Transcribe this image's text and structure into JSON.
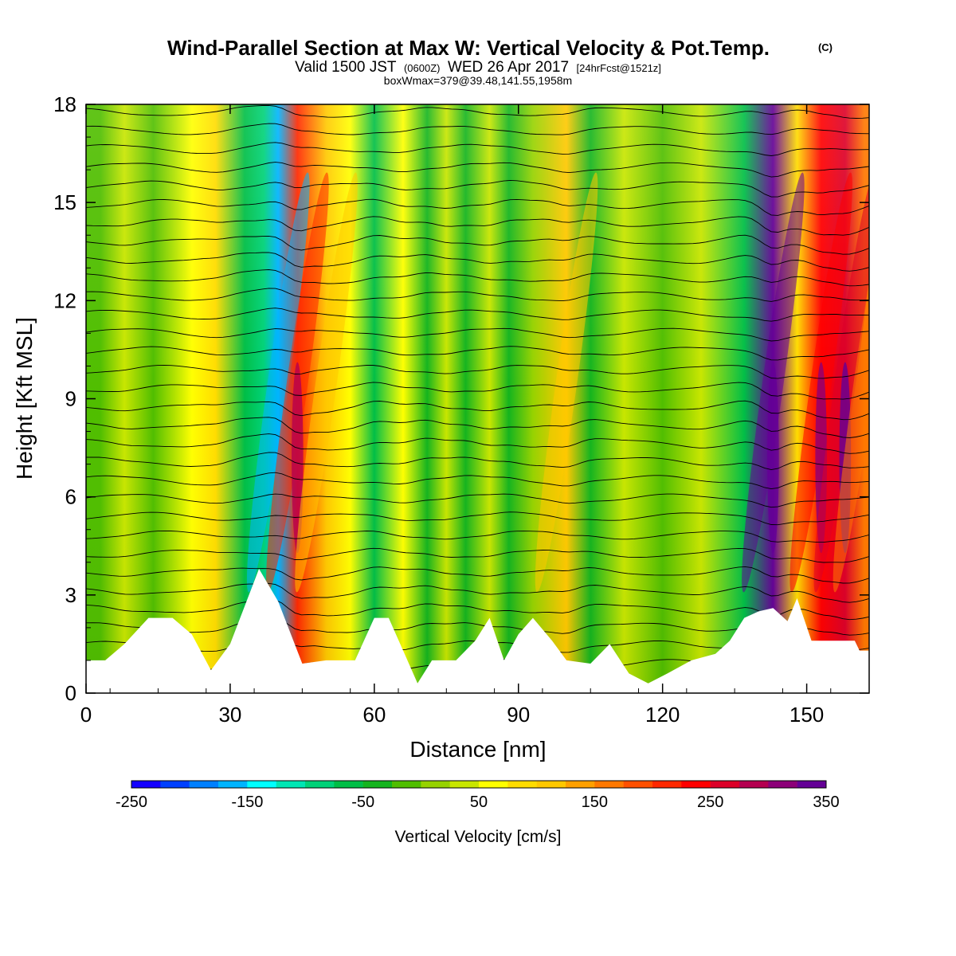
{
  "title": {
    "main": "Wind-Parallel Section at Max W: Vertical Velocity & Pot.Temp.",
    "copyright": "(C)",
    "valid_prefix": "Valid 1500 JST",
    "valid_utc": "(0600Z)",
    "valid_date": "WED 26 Apr 2017",
    "forecast": "[24hrFcst@1521z]",
    "box": "boxWmax=379@39.48,141.55,1958m"
  },
  "colorbar": {
    "title": "Vertical Velocity [cm/s]",
    "tick_labels": [
      "-250",
      "-150",
      "-50",
      "50",
      "150",
      "250",
      "350"
    ],
    "colors": [
      "#1400ff",
      "#0040ff",
      "#0080ff",
      "#00b4ff",
      "#00ffff",
      "#00e6b4",
      "#00d278",
      "#00be46",
      "#14b41e",
      "#50be00",
      "#96d200",
      "#c8e600",
      "#ffff00",
      "#ffdc00",
      "#ffc800",
      "#ffa000",
      "#ff7800",
      "#ff5000",
      "#ff2800",
      "#ff0000",
      "#dc0028",
      "#b40050",
      "#8c0078",
      "#640096"
    ]
  },
  "chart_data": {
    "type": "heatmap",
    "title": "Wind-Parallel Section at Max W: Vertical Velocity & Pot.Temp.",
    "xlabel": "Distance [nm]",
    "ylabel": "Height [Kft MSL]",
    "xlim": [
      0,
      163
    ],
    "ylim": [
      0,
      18
    ],
    "x_ticks": [
      0,
      30,
      60,
      90,
      120,
      150
    ],
    "y_ticks": [
      0,
      3,
      6,
      9,
      12,
      15,
      18
    ],
    "value_units": "cm/s",
    "value_range": [
      -250,
      350
    ],
    "max_w": 379,
    "columns": [
      {
        "x": 3,
        "w": -10
      },
      {
        "x": 8,
        "w": 30
      },
      {
        "x": 14,
        "w": -20
      },
      {
        "x": 22,
        "w": 50
      },
      {
        "x": 27,
        "w": 80
      },
      {
        "x": 33,
        "w": -60
      },
      {
        "x": 37,
        "w": -90
      },
      {
        "x": 40,
        "w": -160
      },
      {
        "x": 44,
        "w": 200
      },
      {
        "x": 50,
        "w": 110
      },
      {
        "x": 55,
        "w": 60
      },
      {
        "x": 60,
        "w": -60
      },
      {
        "x": 66,
        "w": 60
      },
      {
        "x": 71,
        "w": -40
      },
      {
        "x": 75,
        "w": 40
      },
      {
        "x": 79,
        "w": -30
      },
      {
        "x": 84,
        "w": 40
      },
      {
        "x": 88,
        "w": -50
      },
      {
        "x": 93,
        "w": 20
      },
      {
        "x": 100,
        "w": 120
      },
      {
        "x": 105,
        "w": -40
      },
      {
        "x": 112,
        "w": 30
      },
      {
        "x": 120,
        "w": -20
      },
      {
        "x": 128,
        "w": 40
      },
      {
        "x": 137,
        "w": -60
      },
      {
        "x": 143,
        "w": 330
      },
      {
        "x": 148,
        "w": 90
      },
      {
        "x": 153,
        "w": 240
      },
      {
        "x": 158,
        "w": 260
      },
      {
        "x": 162,
        "w": 150
      }
    ],
    "terrain": [
      [
        0,
        1.0
      ],
      [
        4,
        1.0
      ],
      [
        8,
        1.5
      ],
      [
        13,
        2.3
      ],
      [
        18,
        2.3
      ],
      [
        22,
        1.8
      ],
      [
        26,
        0.7
      ],
      [
        30,
        1.5
      ],
      [
        36,
        3.8
      ],
      [
        40,
        2.8
      ],
      [
        45,
        0.9
      ],
      [
        50,
        1.0
      ],
      [
        56,
        1.0
      ],
      [
        60,
        2.3
      ],
      [
        63,
        2.3
      ],
      [
        66,
        1.3
      ],
      [
        69,
        0.3
      ],
      [
        72,
        1.0
      ],
      [
        77,
        1.0
      ],
      [
        81,
        1.6
      ],
      [
        84,
        2.3
      ],
      [
        87,
        1.0
      ],
      [
        90,
        1.8
      ],
      [
        93,
        2.3
      ],
      [
        97,
        1.6
      ],
      [
        100,
        1.0
      ],
      [
        105,
        0.9
      ],
      [
        109,
        1.5
      ],
      [
        113,
        0.6
      ],
      [
        117,
        0.3
      ],
      [
        121,
        0.6
      ],
      [
        126,
        1.0
      ],
      [
        131,
        1.2
      ],
      [
        134,
        1.6
      ],
      [
        137,
        2.3
      ],
      [
        140,
        2.5
      ],
      [
        143,
        2.6
      ],
      [
        146,
        2.2
      ],
      [
        148,
        2.9
      ],
      [
        151,
        1.6
      ],
      [
        155,
        1.6
      ],
      [
        160,
        1.6
      ],
      [
        161,
        1.3
      ],
      [
        163,
        1.3
      ]
    ],
    "theta_contours": {
      "count": 34,
      "interval": 2
    }
  }
}
